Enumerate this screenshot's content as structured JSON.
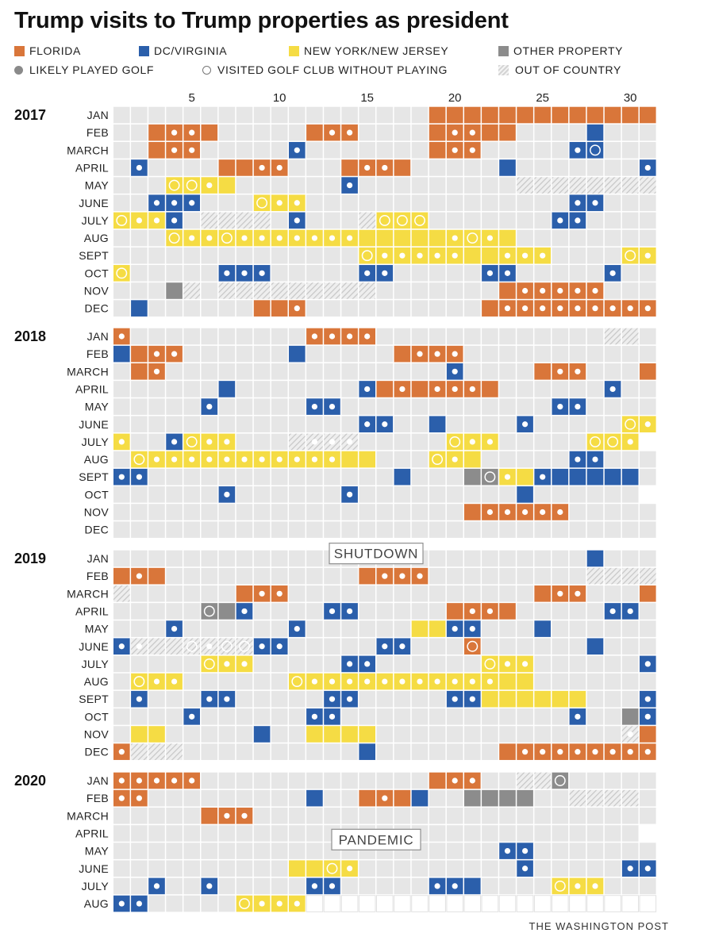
{
  "title": "Trump visits to Trump properties as president",
  "legend": [
    {
      "key": "F",
      "label": "FLORIDA"
    },
    {
      "key": "D",
      "label": "DC/VIRGINIA"
    },
    {
      "key": "N",
      "label": "NEW YORK/NEW JERSEY"
    },
    {
      "key": "P",
      "label": "OTHER PROPERTY"
    },
    {
      "key": "golf",
      "label": "LIKELY PLAYED GOLF"
    },
    {
      "key": "visit",
      "label": "VISITED GOLF CLUB WITHOUT PLAYING"
    },
    {
      "key": "X",
      "label": "OUT OF  COUNTRY"
    }
  ],
  "credit": "THE WASHINGTON POST",
  "colors": {
    "F": "#d9763a",
    "D": "#2b5fab",
    "N": "#f5dc44",
    "P": "#8c8c8c",
    "empty": "#e6e6e6",
    "hatch": "#c8c8c8"
  },
  "chart_data": {
    "type": "heatmap",
    "x": "day of month",
    "x_ticks": [
      5,
      10,
      15,
      20,
      25,
      30
    ],
    "cell_codes": "day-by-day string per month: . = no visit, F = Florida, D = DC/Virginia, N = New York/New Jersey, P = other property, X = out of country, - = after data end; a day followed by g = likely played golf, by o = visited golf club without playing",
    "annotations": [
      {
        "year": "2018",
        "after_month": "DEC",
        "text": "SHUTDOWN"
      },
      {
        "year": "2020",
        "after_month": "MARCH",
        "text": "PANDEMIC"
      }
    ],
    "years": [
      {
        "year": "2017",
        "months": [
          {
            "name": "JAN",
            "days": "..................FFFFFFFFFFFFF"
          },
          {
            "name": "FEB",
            "days": "..FFgFgF.....FFgoFg....FFgFgFF....D..."
          },
          {
            "name": "MARCH",
            "days": "..FFgFg.....Dg.......FFgFg.....DgDo..."
          },
          {
            "name": "APRIL",
            "days": ".Dg....FFFgFg...FFgFgF.....D.......Dg"
          },
          {
            "name": "MAY",
            "days": "...NoNoNgN......Dg.........XXXXXXXX..."
          },
          {
            "name": "JUNE",
            "days": "..DgDgDg...NoNgNg...............DgDg...D...No"
          },
          {
            "name": "JULY",
            "days": "NoNgNgDg.XXXX.Dg...XNoNoNo.......DgDg......DDg"
          },
          {
            "name": "AUG",
            "days": "...NoNgNgNoNgNgNgNgNgNgNgNNNNNNgNoNgN..........."
          },
          {
            "name": "SEPT",
            "days": "..............NoNgNgNgNgNgNNNgNgNg....No Ng"
          },
          {
            "name": "OCT",
            "days": "No.....DgDgDg.....DgDg.....DgDg.....Dg..."
          },
          {
            "name": "NOV",
            "days": "...PX.XXXXXXXXX.......FFgFgFgFgFg....."
          },
          {
            "name": "DEC",
            "days": ".D......FFFg..........FFgFgFgFgFgFgFgFgFg"
          }
        ]
      },
      {
        "year": "2018",
        "months": [
          {
            "name": "JAN",
            "days": "Fg..........FgFgFgFg.............XX....."
          },
          {
            "name": "FEB",
            "days": "DFFgFg......D.....FFgFgFg..........."
          },
          {
            "name": "MARCH",
            "days": ".FFg................Dg....FFgFg...FFgFg"
          },
          {
            "name": "APRIL",
            "days": "......D.......DgFFgFFgFgFgF......Dg.."
          },
          {
            "name": "MAY",
            "days": ".....Dg.....DgDg............DgDg...."
          },
          {
            "name": "JUNE",
            "days": "..............DgDg..D....Dg.....NoNg"
          },
          {
            "name": "JULY",
            "days": "Ng..DgNoNgNg...XXgXgXg.....NoNgNg.....NoNoNg"
          },
          {
            "name": "AUG",
            "days": ".NoNgNgNgNgNgNgNgNgNgNgNgNN...NoNgN.....DgDg....."
          },
          {
            "name": "SEPT",
            "days": "DgDg..............D...PPoNgNDgDDDDD..Dg.."
          },
          {
            "name": "OCT",
            "days": "......Dg......Dg.........D......"
          },
          {
            "name": "NOV",
            "days": "....................FFgFgFgFgFg....."
          },
          {
            "name": "DEC",
            "days": "................................"
          }
        ]
      },
      {
        "year": "2019",
        "months": [
          {
            "name": "JAN",
            "days": "...........................D..."
          },
          {
            "name": "FEB",
            "days": "FFgF...........FFgFgFg.........XXXX.."
          },
          {
            "name": "MARCH",
            "days": "X......FFgFg..............FFgFg...FFgFgFg"
          },
          {
            "name": "APRIL",
            "days": ".....PoPDg....DgDg.....FFgFgF.....DgDg..."
          },
          {
            "name": "MAY",
            "days": "...Dg......Dg......NNDgDg...D......."
          },
          {
            "name": "JUNE",
            "days": "DgXgXXXoXgXoXoDgDg.....DgDg...Fo......D....."
          },
          {
            "name": "JULY",
            "days": ".....NoNgNg.....DgDg......NoNgNg......DgDgDg.."
          },
          {
            "name": "AUG",
            "days": ".NoNgNg......NoNgNgNgNgNgNgNgNgNgNgNgNN..........Dg"
          },
          {
            "name": "SEPT",
            "days": ".Dg...DgDg.....DgDg.....DgDgNNNNNN...DgDg.."
          },
          {
            "name": "OCT",
            "days": "....Dg......DgDg.............Dg..PDg.."
          },
          {
            "name": "NOV",
            "days": ".NN.....D..NNNN..............XgFXg"
          },
          {
            "name": "DEC",
            "days": "FgXXX..........D.......FFgFgFgFgFgFgFgFgFgFF"
          }
        ]
      },
      {
        "year": "2020",
        "months": [
          {
            "name": "JAN",
            "days": "FgFgFgFgFg.............FFgFg..XXPo.......F"
          },
          {
            "name": "FEB",
            "days": "FgFg.........D..FFgFD..PPPP..XXXX........"
          },
          {
            "name": "MARCH",
            "days": ".....FFgFg........................"
          },
          {
            "name": "APRIL",
            "days": ".............................."
          },
          {
            "name": "MAY",
            "days": "......................DgDg......."
          },
          {
            "name": "JUNE",
            "days": "..........NNNoNg.........Dg.....DgDg."
          },
          {
            "name": "JULY",
            "days": "..Dg..Dg.....DgDg.....DgDgD....NoNgNg......"
          },
          {
            "name": "AUG",
            "days": "DgDg.....NoNgNgNg-----------------------"
          }
        ]
      }
    ]
  }
}
